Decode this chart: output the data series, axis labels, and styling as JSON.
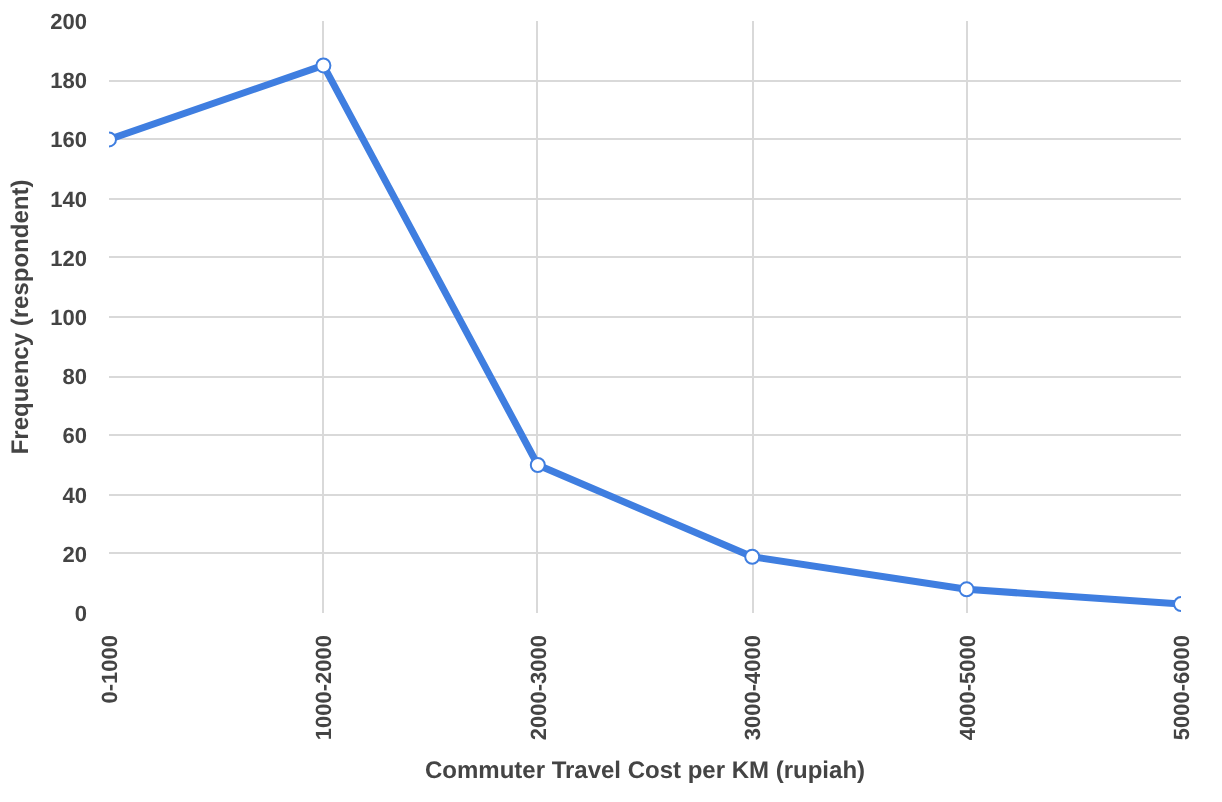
{
  "chart_data": {
    "type": "line",
    "xlabel": "Commuter Travel Cost per KM (rupiah)",
    "ylabel": "Frequency (respondent)",
    "categories": [
      "0-1000",
      "1000-2000",
      "2000-3000",
      "3000-4000",
      "4000-5000",
      "5000-6000"
    ],
    "series": [
      {
        "color": "#3f7ee0",
        "values": [
          160,
          185,
          50,
          19,
          8,
          3
        ]
      }
    ],
    "ylim": [
      0,
      200
    ],
    "yticks": [
      0,
      20,
      40,
      60,
      80,
      100,
      120,
      140,
      160,
      180,
      200
    ],
    "grid": true,
    "marker": "circle",
    "line_style": "solid"
  }
}
